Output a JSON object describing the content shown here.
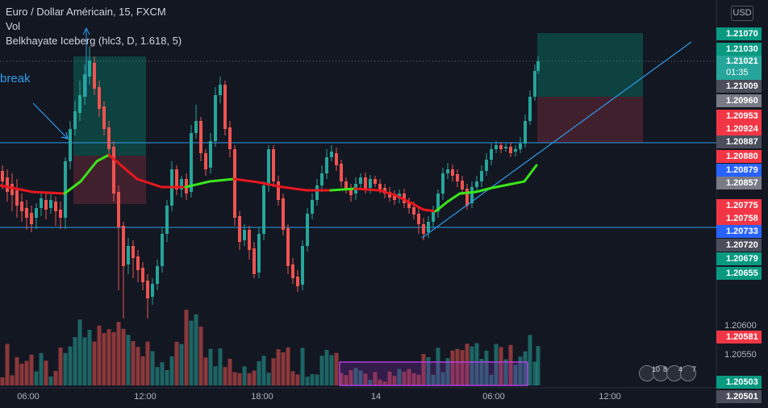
{
  "legend": {
    "symbol": "Euro / Dollar Américain, 15, FXCM",
    "volume": "Vol",
    "indicator": "Belkhayate Iceberg (hlc3, D, 1.618, 5)"
  },
  "annotation_text": "break",
  "currency_button": "USD",
  "price_scale": {
    "ticks": [
      "1.20600",
      "1.20550"
    ],
    "tags": [
      {
        "value": "1.21070",
        "color": "#089981"
      },
      {
        "value": "1.21030",
        "color": "#089981"
      },
      {
        "value": "1.21021",
        "sub": "01:35",
        "color": "#26a69a"
      },
      {
        "value": "1.21009",
        "color": "#4a4e5a"
      },
      {
        "value": "1.20960",
        "color": "#787b86"
      },
      {
        "value": "1.20953",
        "color": "#f23645"
      },
      {
        "value": "1.20924",
        "color": "#f23645"
      },
      {
        "value": "1.20887",
        "color": "#4a4e5a"
      },
      {
        "value": "1.20880",
        "color": "#f23645"
      },
      {
        "value": "1.20879",
        "color": "#2962ff"
      },
      {
        "value": "1.20857",
        "color": "#787b86"
      },
      {
        "value": "1.20775",
        "color": "#f23645"
      },
      {
        "value": "1.20758",
        "color": "#f23645"
      },
      {
        "value": "1.20733",
        "color": "#2962ff"
      },
      {
        "value": "1.20720",
        "color": "#4a4e5a"
      },
      {
        "value": "1.20679",
        "color": "#089981"
      },
      {
        "value": "1.20655",
        "color": "#089981"
      },
      {
        "value": "1.20581",
        "color": "#f23645"
      },
      {
        "value": "1.20503",
        "color": "#089981"
      },
      {
        "value": "1.20501",
        "color": "#4a4e5a"
      }
    ]
  },
  "time_axis": [
    "06:00",
    "12:00",
    "18:00",
    "14",
    "06:00",
    "12:00"
  ],
  "events": {
    "counts": [
      "10",
      "8",
      "4",
      "7"
    ]
  },
  "colors": {
    "up": "#26a69a",
    "down": "#ef5350",
    "trend": "#2f9ce9",
    "ma_up": "#39e61a",
    "ma_down": "#e8171e",
    "profit_zone": "#0d4a45",
    "loss_zone": "#4a2230",
    "volume_highlight": "#8e2dbf"
  }
}
